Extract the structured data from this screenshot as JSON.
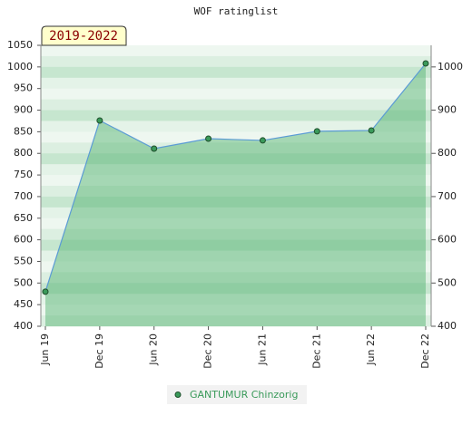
{
  "chart_data": {
    "type": "area",
    "title": "WOF ratinglist",
    "period_label": "2019-2022",
    "categories": [
      "Jun 19",
      "Dec 19",
      "Jun 20",
      "Dec 20",
      "Jun 21",
      "Dec 21",
      "Jun 22",
      "Dec 22"
    ],
    "series": [
      {
        "name": "GANTUMUR Chinzorig",
        "color": "#3a9a5a",
        "values": [
          480,
          876,
          811,
          834,
          830,
          851,
          853,
          1008
        ]
      }
    ],
    "ylim": [
      400,
      1050
    ],
    "yticks": [
      400,
      450,
      500,
      550,
      600,
      650,
      700,
      750,
      800,
      850,
      900,
      950,
      1000,
      1050
    ],
    "y2lim": [
      400,
      1050
    ],
    "y2ticks": [
      400,
      500,
      600,
      700,
      800,
      900,
      1000
    ],
    "legend": "bottom"
  }
}
